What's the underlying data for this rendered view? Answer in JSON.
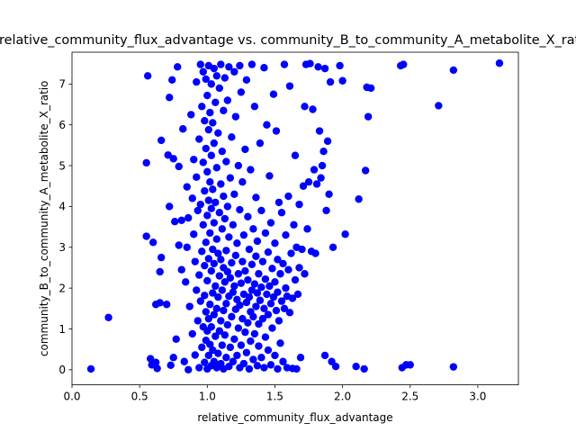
{
  "chart_data": {
    "type": "scatter",
    "title": "relative_community_flux_advantage vs. community_B_to_community_A_metabolite_X_ratio",
    "xlabel": "relative_community_flux_advantage",
    "ylabel": "community_B_to_community_A_metabolite_X_ratio",
    "xlim": [
      0.0,
      3.3
    ],
    "ylim": [
      -0.37,
      7.78
    ],
    "xticks": [
      0.0,
      0.5,
      1.0,
      1.5,
      2.0,
      2.5,
      3.0
    ],
    "xtick_labels": [
      "0.0",
      "0.5",
      "1.0",
      "1.5",
      "2.0",
      "2.5",
      "3.0"
    ],
    "yticks": [
      0,
      1,
      2,
      3,
      4,
      5,
      6,
      7
    ],
    "ytick_labels": [
      "0",
      "1",
      "2",
      "3",
      "4",
      "5",
      "6",
      "7"
    ],
    "grid": false,
    "legend": "none",
    "marker_color": "#0000ff",
    "points": [
      [
        0.14,
        0.02
      ],
      [
        0.27,
        1.28
      ],
      [
        0.55,
        5.07
      ],
      [
        0.55,
        3.27
      ],
      [
        0.56,
        7.2
      ],
      [
        0.58,
        0.27
      ],
      [
        0.59,
        0.12
      ],
      [
        0.6,
        3.12
      ],
      [
        0.62,
        0.18
      ],
      [
        0.62,
        1.6
      ],
      [
        0.63,
        0.03
      ],
      [
        0.65,
        1.64
      ],
      [
        0.65,
        2.4
      ],
      [
        0.66,
        2.75
      ],
      [
        0.66,
        5.62
      ],
      [
        0.7,
        1.6
      ],
      [
        0.71,
        5.26
      ],
      [
        0.72,
        4.0
      ],
      [
        0.72,
        6.67
      ],
      [
        0.73,
        0.11
      ],
      [
        0.74,
        7.1
      ],
      [
        0.75,
        0.3
      ],
      [
        0.75,
        5.17
      ],
      [
        0.76,
        3.63
      ],
      [
        0.77,
        0.75
      ],
      [
        0.78,
        7.42
      ],
      [
        0.79,
        3.05
      ],
      [
        0.79,
        4.98
      ],
      [
        0.81,
        2.45
      ],
      [
        0.81,
        3.66
      ],
      [
        0.82,
        5.9
      ],
      [
        0.83,
        0.2
      ],
      [
        0.84,
        2.15
      ],
      [
        0.85,
        3.0
      ],
      [
        0.85,
        4.48
      ],
      [
        0.86,
        0.0
      ],
      [
        0.86,
        3.72
      ],
      [
        0.87,
        1.55
      ],
      [
        0.88,
        6.25
      ],
      [
        0.89,
        4.2
      ],
      [
        0.89,
        0.88
      ],
      [
        0.9,
        3.32
      ],
      [
        0.9,
        5.15
      ],
      [
        0.91,
        2.65
      ],
      [
        0.91,
        0.36
      ],
      [
        0.92,
        1.95
      ],
      [
        0.92,
        4.72
      ],
      [
        0.92,
        7.05
      ],
      [
        0.93,
        1.2
      ],
      [
        0.93,
        3.9
      ],
      [
        0.94,
        0.05
      ],
      [
        0.94,
        2.32
      ],
      [
        0.94,
        5.65
      ],
      [
        0.95,
        1.68
      ],
      [
        0.95,
        4.05
      ],
      [
        0.95,
        7.48
      ],
      [
        0.96,
        0.55
      ],
      [
        0.96,
        2.9
      ],
      [
        0.96,
        6.45
      ],
      [
        0.97,
        1.05
      ],
      [
        0.97,
        3.55
      ],
      [
        0.97,
        5.08
      ],
      [
        0.97,
        7.3
      ],
      [
        0.98,
        0.18
      ],
      [
        0.98,
        1.82
      ],
      [
        0.98,
        2.55
      ],
      [
        0.98,
        4.38
      ],
      [
        0.98,
        6.1
      ],
      [
        0.99,
        0.72
      ],
      [
        0.99,
        1.42
      ],
      [
        0.99,
        3.12
      ],
      [
        0.99,
        5.42
      ],
      [
        0.99,
        7.12
      ],
      [
        1.0,
        0.02
      ],
      [
        1.0,
        0.95
      ],
      [
        1.0,
        2.18
      ],
      [
        1.0,
        3.78
      ],
      [
        1.0,
        4.85
      ],
      [
        1.0,
        6.72
      ],
      [
        1.01,
        0.35
      ],
      [
        1.01,
        1.25
      ],
      [
        1.01,
        2.72
      ],
      [
        1.01,
        4.15
      ],
      [
        1.01,
        5.88
      ],
      [
        1.01,
        7.45
      ],
      [
        1.02,
        0.62
      ],
      [
        1.02,
        1.6
      ],
      [
        1.02,
        3.35
      ],
      [
        1.02,
        4.6
      ],
      [
        1.02,
        6.3
      ],
      [
        1.03,
        0.1
      ],
      [
        1.03,
        1.05
      ],
      [
        1.03,
        2.42
      ],
      [
        1.03,
        3.95
      ],
      [
        1.03,
        5.25
      ],
      [
        1.03,
        7.0
      ],
      [
        1.04,
        0.48
      ],
      [
        1.04,
        1.88
      ],
      [
        1.04,
        2.95
      ],
      [
        1.04,
        4.42
      ],
      [
        1.04,
        6.05
      ],
      [
        1.05,
        0.2
      ],
      [
        1.05,
        1.35
      ],
      [
        1.05,
        2.6
      ],
      [
        1.05,
        3.6
      ],
      [
        1.05,
        5.55
      ],
      [
        1.05,
        7.38
      ],
      [
        1.06,
        0.82
      ],
      [
        1.06,
        2.05
      ],
      [
        1.06,
        4.1
      ],
      [
        1.06,
        6.55
      ],
      [
        1.07,
        0.05
      ],
      [
        1.07,
        1.5
      ],
      [
        1.07,
        3.2
      ],
      [
        1.07,
        4.95
      ],
      [
        1.07,
        7.2
      ],
      [
        1.08,
        0.4
      ],
      [
        1.08,
        1.78
      ],
      [
        1.08,
        2.85
      ],
      [
        1.08,
        5.8
      ],
      [
        1.09,
        0.95
      ],
      [
        1.09,
        2.3
      ],
      [
        1.09,
        3.85
      ],
      [
        1.09,
        6.9
      ],
      [
        1.1,
        0.15
      ],
      [
        1.1,
        1.2
      ],
      [
        1.1,
        2.7
      ],
      [
        1.1,
        4.55
      ],
      [
        1.1,
        7.48
      ],
      [
        1.11,
        0.6
      ],
      [
        1.11,
        1.95
      ],
      [
        1.11,
        3.45
      ],
      [
        1.11,
        5.35
      ],
      [
        1.12,
        0.02
      ],
      [
        1.12,
        1.45
      ],
      [
        1.12,
        2.5
      ],
      [
        1.12,
        4.25
      ],
      [
        1.12,
        6.35
      ],
      [
        1.13,
        0.85
      ],
      [
        1.13,
        2.15
      ],
      [
        1.13,
        3.7
      ],
      [
        1.13,
        7.15
      ],
      [
        1.14,
        0.3
      ],
      [
        1.14,
        1.62
      ],
      [
        1.14,
        2.92
      ],
      [
        1.14,
        5.1
      ],
      [
        1.15,
        1.1
      ],
      [
        1.15,
        2.4
      ],
      [
        1.15,
        4.0
      ],
      [
        1.15,
        6.6
      ],
      [
        1.16,
        0.08
      ],
      [
        1.16,
        1.8
      ],
      [
        1.16,
        3.25
      ],
      [
        1.16,
        7.42
      ],
      [
        1.17,
        0.55
      ],
      [
        1.17,
        2.25
      ],
      [
        1.17,
        4.7
      ],
      [
        1.18,
        1.3
      ],
      [
        1.18,
        2.62
      ],
      [
        1.18,
        5.7
      ],
      [
        1.19,
        0.2
      ],
      [
        1.19,
        1.9
      ],
      [
        1.19,
        3.55
      ],
      [
        1.2,
        0.75
      ],
      [
        1.2,
        2.05
      ],
      [
        1.2,
        4.3
      ],
      [
        1.2,
        7.3
      ],
      [
        1.21,
        1.48
      ],
      [
        1.21,
        2.8
      ],
      [
        1.21,
        6.2
      ],
      [
        1.22,
        0.35
      ],
      [
        1.22,
        1.72
      ],
      [
        1.22,
        3.1
      ],
      [
        1.23,
        1.02
      ],
      [
        1.23,
        2.35
      ],
      [
        1.23,
        5.0
      ],
      [
        1.24,
        0.05
      ],
      [
        1.24,
        1.58
      ],
      [
        1.24,
        3.92
      ],
      [
        1.24,
        7.45
      ],
      [
        1.25,
        0.6
      ],
      [
        1.25,
        2.12
      ],
      [
        1.25,
        6.8
      ],
      [
        1.26,
        1.25
      ],
      [
        1.26,
        2.65
      ],
      [
        1.26,
        4.6
      ],
      [
        1.27,
        0.15
      ],
      [
        1.27,
        1.85
      ],
      [
        1.27,
        3.3
      ],
      [
        1.28,
        0.92
      ],
      [
        1.28,
        2.42
      ],
      [
        1.28,
        5.4
      ],
      [
        1.29,
        0.42
      ],
      [
        1.29,
        1.65
      ],
      [
        1.29,
        7.1
      ],
      [
        1.3,
        1.15
      ],
      [
        1.3,
        2.2
      ],
      [
        1.3,
        3.75
      ],
      [
        1.31,
        0.02
      ],
      [
        1.31,
        1.78
      ],
      [
        1.31,
        2.95
      ],
      [
        1.32,
        0.7
      ],
      [
        1.32,
        1.42
      ],
      [
        1.32,
        4.9
      ],
      [
        1.33,
        1.95
      ],
      [
        1.33,
        2.58
      ],
      [
        1.33,
        7.48
      ],
      [
        1.34,
        0.25
      ],
      [
        1.34,
        1.3
      ],
      [
        1.34,
        3.45
      ],
      [
        1.35,
        0.88
      ],
      [
        1.35,
        2.1
      ],
      [
        1.35,
        6.45
      ],
      [
        1.36,
        1.55
      ],
      [
        1.36,
        2.78
      ],
      [
        1.36,
        4.22
      ],
      [
        1.37,
        0.1
      ],
      [
        1.37,
        1.88
      ],
      [
        1.37,
        3.15
      ],
      [
        1.38,
        0.58
      ],
      [
        1.38,
        1.12
      ],
      [
        1.38,
        2.35
      ],
      [
        1.39,
        1.7
      ],
      [
        1.39,
        5.55
      ],
      [
        1.4,
        0.3
      ],
      [
        1.4,
        2.02
      ],
      [
        1.4,
        3.9
      ],
      [
        1.41,
        1.25
      ],
      [
        1.41,
        2.65
      ],
      [
        1.42,
        0.05
      ],
      [
        1.42,
        1.5
      ],
      [
        1.42,
        7.4
      ],
      [
        1.43,
        0.8
      ],
      [
        1.43,
        2.22
      ],
      [
        1.43,
        3.35
      ],
      [
        1.44,
        1.85
      ],
      [
        1.44,
        6.0
      ],
      [
        1.45,
        0.48
      ],
      [
        1.45,
        1.35
      ],
      [
        1.45,
        2.88
      ],
      [
        1.46,
        2.05
      ],
      [
        1.46,
        4.75
      ],
      [
        1.47,
        0.12
      ],
      [
        1.47,
        1.62
      ],
      [
        1.47,
        3.6
      ],
      [
        1.48,
        1.02
      ],
      [
        1.48,
        2.48
      ],
      [
        1.49,
        1.78
      ],
      [
        1.49,
        6.75
      ],
      [
        1.5,
        0.35
      ],
      [
        1.5,
        2.15
      ],
      [
        1.5,
        3.1
      ],
      [
        1.51,
        1.45
      ],
      [
        1.51,
        5.85
      ],
      [
        1.52,
        0.02
      ],
      [
        1.52,
        1.9
      ],
      [
        1.52,
        2.7
      ],
      [
        1.53,
        1.2
      ],
      [
        1.53,
        4.1
      ],
      [
        1.54,
        0.65
      ],
      [
        1.54,
        2.35
      ],
      [
        1.55,
        1.68
      ],
      [
        1.55,
        3.85
      ],
      [
        1.56,
        0.2
      ],
      [
        1.56,
        2.6
      ],
      [
        1.57,
        1.5
      ],
      [
        1.57,
        7.48
      ],
      [
        1.58,
        2.0
      ],
      [
        1.58,
        3.3
      ],
      [
        1.59,
        0.05
      ],
      [
        1.59,
        1.8
      ],
      [
        1.6,
        2.45
      ],
      [
        1.6,
        4.25
      ],
      [
        1.61,
        1.4
      ],
      [
        1.61,
        6.95
      ],
      [
        1.62,
        2.85
      ],
      [
        1.63,
        0.03
      ],
      [
        1.63,
        1.75
      ],
      [
        1.64,
        3.55
      ],
      [
        1.65,
        2.2
      ],
      [
        1.65,
        5.25
      ],
      [
        1.66,
        0.02
      ],
      [
        1.66,
        3.0
      ],
      [
        1.67,
        1.85
      ],
      [
        1.68,
        2.5
      ],
      [
        1.68,
        4.05
      ],
      [
        1.69,
        0.3
      ],
      [
        1.7,
        2.95
      ],
      [
        1.71,
        4.5
      ],
      [
        1.72,
        6.45
      ],
      [
        1.72,
        2.35
      ],
      [
        1.73,
        7.48
      ],
      [
        1.74,
        3.45
      ],
      [
        1.75,
        4.6
      ],
      [
        1.76,
        7.5
      ],
      [
        1.77,
        2.9
      ],
      [
        1.78,
        6.38
      ],
      [
        1.79,
        4.9
      ],
      [
        1.8,
        2.85
      ],
      [
        1.81,
        4.55
      ],
      [
        1.82,
        7.42
      ],
      [
        1.83,
        5.85
      ],
      [
        1.84,
        4.7
      ],
      [
        1.85,
        5.0
      ],
      [
        1.86,
        5.35
      ],
      [
        1.87,
        0.35
      ],
      [
        1.87,
        7.38
      ],
      [
        1.88,
        3.9
      ],
      [
        1.89,
        5.6
      ],
      [
        1.9,
        4.3
      ],
      [
        1.91,
        7.05
      ],
      [
        1.92,
        0.2
      ],
      [
        1.93,
        3.0
      ],
      [
        1.95,
        0.08
      ],
      [
        1.98,
        7.45
      ],
      [
        2.0,
        7.08
      ],
      [
        2.02,
        3.32
      ],
      [
        2.1,
        0.08
      ],
      [
        2.12,
        4.18
      ],
      [
        2.16,
        0.02
      ],
      [
        2.17,
        4.88
      ],
      [
        2.18,
        6.92
      ],
      [
        2.19,
        6.2
      ],
      [
        2.21,
        6.9
      ],
      [
        2.43,
        7.45
      ],
      [
        2.44,
        0.05
      ],
      [
        2.45,
        7.48
      ],
      [
        2.47,
        0.12
      ],
      [
        2.5,
        0.12
      ],
      [
        2.71,
        6.47
      ],
      [
        2.82,
        0.07
      ],
      [
        2.82,
        7.34
      ],
      [
        3.16,
        7.51
      ]
    ]
  }
}
